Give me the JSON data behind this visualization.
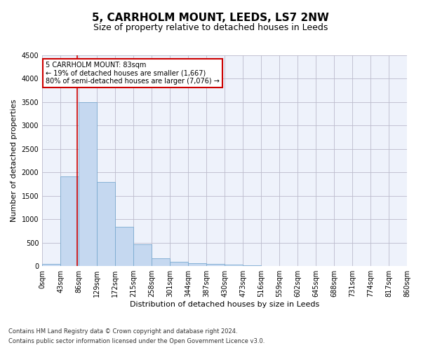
{
  "title": "5, CARRHOLM MOUNT, LEEDS, LS7 2NW",
  "subtitle": "Size of property relative to detached houses in Leeds",
  "xlabel": "Distribution of detached houses by size in Leeds",
  "ylabel": "Number of detached properties",
  "bar_color": "#c5d8f0",
  "bar_edge_color": "#7aaad0",
  "marker_line_color": "#cc0000",
  "marker_value": 83,
  "annotation_line1": "5 CARRHOLM MOUNT: 83sqm",
  "annotation_line2": "← 19% of detached houses are smaller (1,667)",
  "annotation_line3": "80% of semi-detached houses are larger (7,076) →",
  "annotation_box_color": "#ffffff",
  "annotation_box_edge": "#cc0000",
  "footnote1": "Contains HM Land Registry data © Crown copyright and database right 2024.",
  "footnote2": "Contains public sector information licensed under the Open Government Licence v3.0.",
  "bin_edges": [
    0,
    43,
    86,
    129,
    172,
    215,
    258,
    301,
    344,
    387,
    430,
    473,
    516,
    559,
    602,
    645,
    688,
    731,
    774,
    817,
    860
  ],
  "bar_heights": [
    50,
    1920,
    3500,
    1790,
    840,
    460,
    160,
    100,
    65,
    55,
    40,
    25,
    0,
    0,
    0,
    0,
    0,
    0,
    0,
    0
  ],
  "ylim": [
    0,
    4500
  ],
  "yticks": [
    0,
    500,
    1000,
    1500,
    2000,
    2500,
    3000,
    3500,
    4000,
    4500
  ],
  "background_color": "#eef2fb",
  "grid_color": "#bbbbcc",
  "title_fontsize": 11,
  "subtitle_fontsize": 9,
  "axis_label_fontsize": 8,
  "tick_fontsize": 7,
  "annotation_fontsize": 7
}
